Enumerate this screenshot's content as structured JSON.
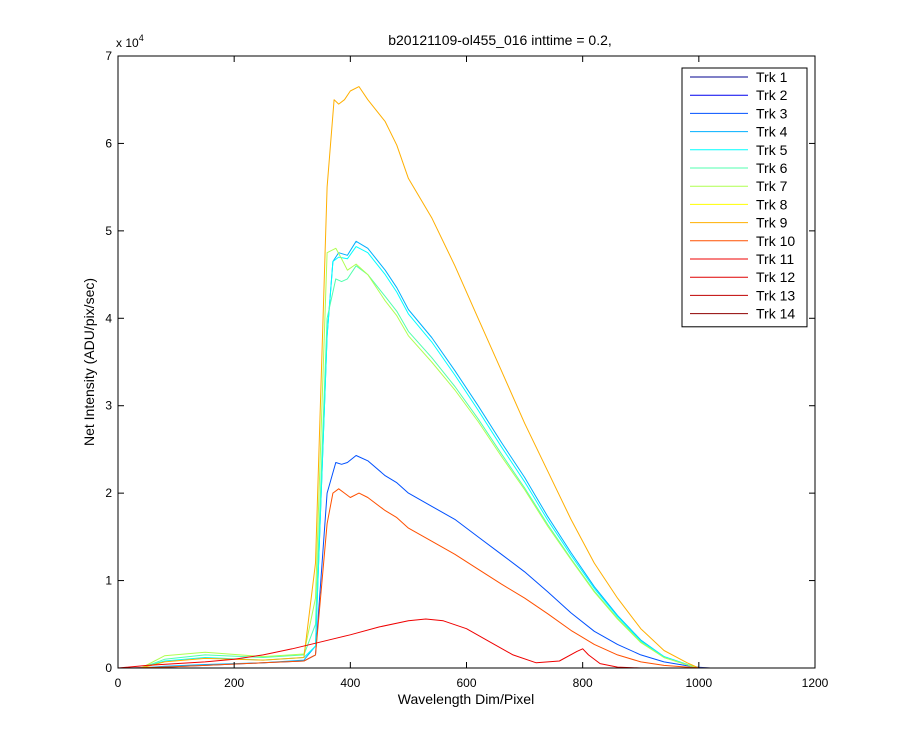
{
  "chart_data": {
    "type": "line",
    "title": "b20121109-ol455_016 inttime = 0.2,",
    "xlabel": "Wavelength Dim/Pixel",
    "ylabel": "Net Intensity (ADU/pix/sec)",
    "xlim": [
      0,
      1200
    ],
    "ylim": [
      0,
      70000
    ],
    "y_exponent_label": "x 10",
    "y_exponent_power": "4",
    "xticks": [
      0,
      200,
      400,
      600,
      800,
      1000,
      1200
    ],
    "xtick_labels": [
      "0",
      "200",
      "400",
      "600",
      "800",
      "1000",
      "1200"
    ],
    "yticks": [
      0,
      10000,
      20000,
      30000,
      40000,
      50000,
      60000,
      70000
    ],
    "ytick_labels": [
      "0",
      "1",
      "2",
      "3",
      "4",
      "5",
      "6",
      "7"
    ],
    "grid": false,
    "legend_position": "top-right",
    "series": [
      {
        "name": "Trk 1",
        "color": "#00008F",
        "x": [
          40,
          300,
          340,
          1000
        ],
        "y": [
          0,
          0,
          0,
          0
        ]
      },
      {
        "name": "Trk 2",
        "color": "#0000EF",
        "x": [
          40,
          300,
          340,
          1000
        ],
        "y": [
          0,
          0,
          0,
          0
        ]
      },
      {
        "name": "Trk 3",
        "color": "#0050FF",
        "x": [
          20,
          80,
          150,
          250,
          320,
          340,
          360,
          375,
          385,
          395,
          410,
          430,
          460,
          480,
          500,
          540,
          580,
          620,
          660,
          700,
          740,
          780,
          820,
          860,
          900,
          940,
          980,
          1000,
          1020
        ],
        "y": [
          0,
          100,
          300,
          600,
          800,
          1500,
          20000,
          23500,
          23300,
          23500,
          24300,
          23700,
          22000,
          21200,
          20000,
          18500,
          17000,
          15000,
          13000,
          11000,
          8700,
          6300,
          4200,
          2700,
          1500,
          700,
          250,
          80,
          0
        ]
      },
      {
        "name": "Trk 4",
        "color": "#00AFFF",
        "x": [
          40,
          80,
          150,
          250,
          320,
          340,
          360,
          370,
          380,
          395,
          410,
          430,
          460,
          480,
          500,
          540,
          580,
          620,
          660,
          700,
          740,
          780,
          820,
          860,
          900,
          940,
          980,
          1000
        ],
        "y": [
          0,
          200,
          400,
          600,
          900,
          2500,
          38000,
          46500,
          47500,
          47200,
          48800,
          48000,
          45500,
          43500,
          41000,
          37800,
          34000,
          30000,
          25800,
          21800,
          17300,
          13200,
          9300,
          6000,
          3200,
          1300,
          400,
          0
        ]
      },
      {
        "name": "Trk 5",
        "color": "#00FFFF",
        "x": [
          40,
          80,
          150,
          250,
          320,
          340,
          360,
          370,
          380,
          395,
          410,
          430,
          460,
          480,
          500,
          540,
          580,
          620,
          660,
          700,
          740,
          780,
          820,
          860,
          900,
          940,
          980,
          1000
        ],
        "y": [
          0,
          800,
          1200,
          900,
          1200,
          2500,
          38000,
          46500,
          47000,
          46800,
          48200,
          47500,
          45000,
          43000,
          40500,
          37300,
          33500,
          29500,
          25300,
          21300,
          16900,
          12900,
          9100,
          5900,
          3100,
          1300,
          400,
          0
        ]
      },
      {
        "name": "Trk 6",
        "color": "#50FFAF",
        "x": [
          40,
          80,
          150,
          250,
          320,
          340,
          360,
          375,
          385,
          395,
          410,
          430,
          460,
          480,
          500,
          540,
          580,
          620,
          660,
          700,
          740,
          780,
          820,
          860,
          900,
          940,
          980,
          1000
        ],
        "y": [
          0,
          1000,
          1500,
          1200,
          1500,
          5000,
          40000,
          44500,
          44200,
          44500,
          46000,
          45000,
          42500,
          40800,
          38500,
          35500,
          32200,
          28500,
          24500,
          20600,
          16400,
          12500,
          8800,
          5700,
          3000,
          1200,
          350,
          0
        ]
      },
      {
        "name": "Trk 7",
        "color": "#AFFF50",
        "x": [
          40,
          80,
          150,
          250,
          320,
          340,
          360,
          375,
          385,
          395,
          410,
          430,
          460,
          480,
          500,
          540,
          580,
          620,
          660,
          700,
          740,
          780,
          820,
          860,
          900,
          940,
          980,
          1000
        ],
        "y": [
          0,
          1400,
          1800,
          1300,
          1600,
          8000,
          47500,
          48000,
          46800,
          45500,
          46200,
          45000,
          42000,
          40300,
          38000,
          35000,
          31800,
          28200,
          24200,
          20400,
          16200,
          12400,
          8700,
          5600,
          2900,
          1200,
          350,
          0
        ]
      },
      {
        "name": "Trk 8",
        "color": "#FFFF00",
        "x": [
          40,
          300,
          340,
          1000
        ],
        "y": [
          0,
          0,
          0,
          0
        ]
      },
      {
        "name": "Trk 9",
        "color": "#FFAF00",
        "x": [
          40,
          80,
          150,
          250,
          320,
          340,
          360,
          372,
          380,
          390,
          400,
          415,
          430,
          460,
          480,
          500,
          540,
          580,
          620,
          660,
          700,
          740,
          780,
          820,
          860,
          900,
          940,
          980,
          1000
        ],
        "y": [
          0,
          700,
          1100,
          900,
          1200,
          12000,
          55000,
          65000,
          64500,
          65000,
          66000,
          66500,
          65000,
          62500,
          59800,
          56000,
          51500,
          46000,
          40000,
          34000,
          28000,
          22500,
          17000,
          12000,
          8000,
          4500,
          2000,
          600,
          0
        ]
      },
      {
        "name": "Trk 10",
        "color": "#FF5000",
        "x": [
          20,
          80,
          150,
          250,
          320,
          340,
          360,
          370,
          380,
          390,
          400,
          415,
          430,
          460,
          480,
          500,
          540,
          580,
          620,
          660,
          700,
          740,
          780,
          820,
          860,
          900,
          940,
          980,
          1000,
          1020
        ],
        "y": [
          0,
          100,
          300,
          600,
          800,
          1500,
          16500,
          20000,
          20500,
          20000,
          19500,
          20000,
          19500,
          18000,
          17200,
          16000,
          14500,
          13000,
          11300,
          9600,
          8000,
          6200,
          4300,
          2700,
          1500,
          700,
          300,
          100,
          30,
          0
        ]
      },
      {
        "name": "Trk 11",
        "color": "#EF0000",
        "x": [
          0,
          50,
          100,
          150,
          200,
          250,
          300,
          350,
          400,
          450,
          500,
          530,
          560,
          600,
          640,
          680,
          720,
          760,
          790,
          800,
          810,
          830,
          860,
          900,
          940,
          1000,
          1030
        ],
        "y": [
          0,
          300,
          500,
          700,
          1000,
          1500,
          2200,
          3000,
          3800,
          4700,
          5400,
          5600,
          5400,
          4500,
          3000,
          1500,
          600,
          800,
          1900,
          2200,
          1500,
          500,
          100,
          0,
          0,
          0,
          0
        ]
      },
      {
        "name": "Trk 12",
        "color": "#DF0000",
        "x": [
          40,
          300,
          340,
          1000
        ],
        "y": [
          0,
          0,
          0,
          0
        ]
      },
      {
        "name": "Trk 13",
        "color": "#BF0000",
        "x": [
          40,
          300,
          340,
          1000
        ],
        "y": [
          0,
          0,
          0,
          0
        ]
      },
      {
        "name": "Trk 14",
        "color": "#8F0000",
        "x": [
          40,
          300,
          340,
          1000
        ],
        "y": [
          0,
          0,
          0,
          0
        ]
      }
    ]
  }
}
